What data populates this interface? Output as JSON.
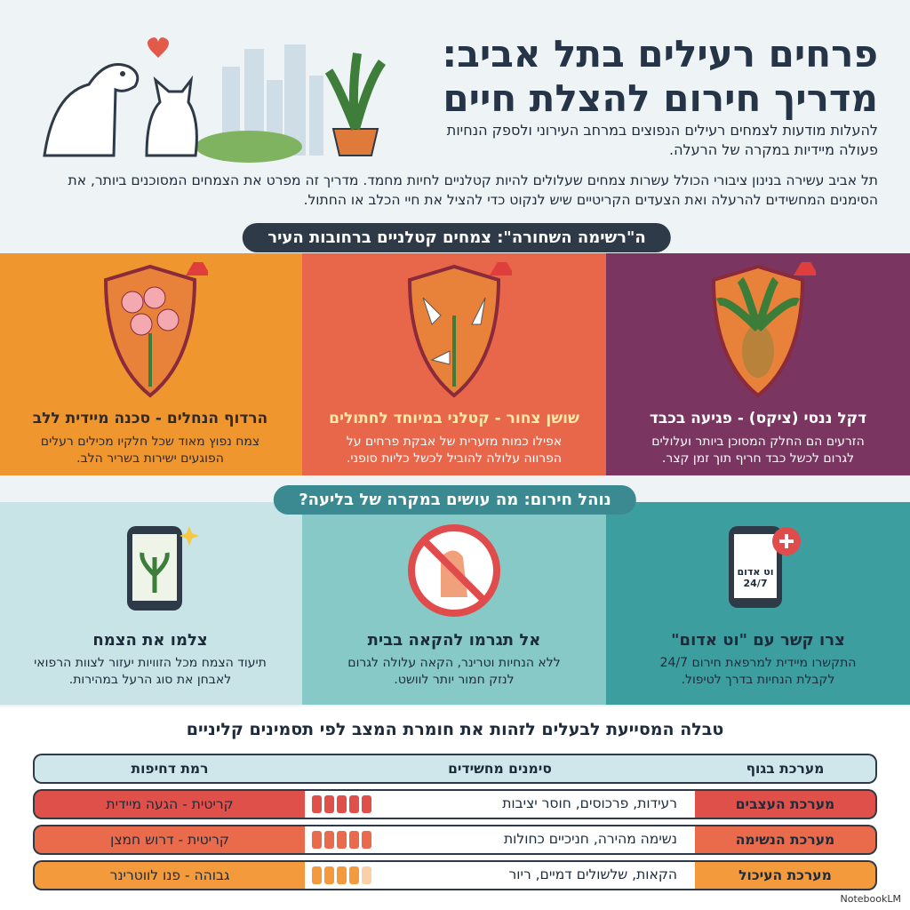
{
  "header": {
    "title": "פרחים רעילים בתל אביב: מדריך חירום להצלת חיים",
    "subtitle": "להעלות מודעות לצמחים רעילים הנפוצים במרחב העירוני ולספק הנחיות פעולה מיידיות במקרה של הרעלה.",
    "intro": "תל אביב עשירה בנינון ציבורי הכולל עשרות צמחים שעלולים להיות קטלניים לחיות מחמד. מדריך זה מפרט את הצמחים המסוכנים ביותר, את הסימנים המחשידים להרעלה ואת הצעדים הקריטיים שיש לנקוט כדי להציל את חיי הכלב או החתול."
  },
  "blacklist": {
    "label": "ה\"רשימה השחורה\": צמחים קטלניים ברחובות העיר",
    "plants": [
      {
        "name": "דקל ננסי (ציקס) - פגיעה בכבד",
        "desc": "הזרעים הם החלק המסוכן ביותר ועלולים לגרום לכשל כבד חריף תוך זמן קצר.",
        "color": "#7a3560",
        "icon": "cycad-palm-icon"
      },
      {
        "name": "שושן צחור - קטלני במיוחד לחתולים",
        "desc": "אפילו כמות מזערית של אבקת פרחים על הפרווה עלולה להוביל לכשל כליות סופני.",
        "color": "#e8674a",
        "icon": "lily-icon"
      },
      {
        "name": "הרדוף הנחלים - סכנה מיידית ללב",
        "desc": "צמח נפוץ מאוד שכל חלקיו מכילים רעלים הפוגעים ישירות בשריר הלב.",
        "color": "#f0962e",
        "icon": "oleander-icon"
      }
    ]
  },
  "emergency": {
    "label": "נוהל חירום: מה עושים במקרה של בליעה?",
    "steps": [
      {
        "title": "צרו קשר עם \"וט אדום\"",
        "desc": "התקשרו מיידית למרפאת חירום 24/7 לקבלת הנחיות בדרך לטיפול.",
        "phone_text": "וט אדום",
        "hours": "24/7",
        "color": "#3d9ea0"
      },
      {
        "title": "אל תגרמו להקאה בבית",
        "desc": "ללא הנחיות וטרינר, הקאה עלולה לגרום לנזק חמור יותר לוושט.",
        "color": "#86c9c6"
      },
      {
        "title": "צלמו את הצמח",
        "desc": "תיעוד הצמח מכל הזוויות יעזור לצוות הרפואי לאבחן את סוג הרעל במהירות.",
        "color": "#c8e4e6"
      }
    ]
  },
  "table": {
    "title": "טבלה המסייעת לבעלים לזהות את חומרת המצב לפי תסמינים קליניים",
    "headers": [
      "מערכת בגוף",
      "סימנים מחשידים",
      "רמת דחיפות"
    ],
    "rows": [
      {
        "system": "מערכת העצבים",
        "signs": "רעידות, פרכוסים, חוסר יציבות",
        "urgency": "קריטית - הגעה מיידית",
        "severity": 5,
        "color": "#e0504a"
      },
      {
        "system": "מערכת הנשימה",
        "signs": "נשימה מהירה, חניכיים כחולות",
        "urgency": "קריטית - דרוש חמצן",
        "severity": 5,
        "color": "#ea6a4c"
      },
      {
        "system": "מערכת העיכול",
        "signs": "הקאות, שלשולים דמיים, ריור",
        "urgency": "גבוהה - פנו לווטרינר",
        "severity": 4,
        "color": "#f39a3c"
      }
    ]
  },
  "footer": {
    "brand": "NotebookLM"
  }
}
